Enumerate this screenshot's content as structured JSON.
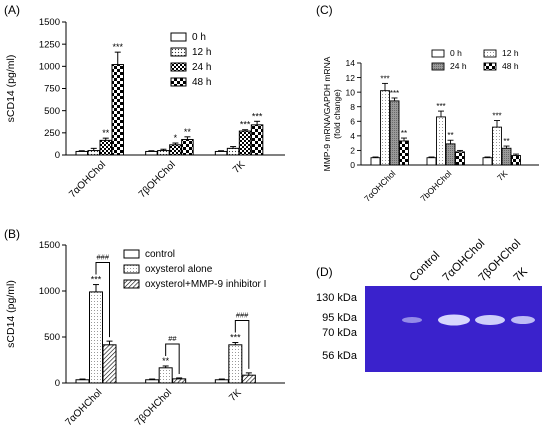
{
  "chart_data": [
    {
      "panel_label": "(A)",
      "type": "bar",
      "ylabel": "sCD14 (pg/ml)",
      "ylim": [
        0,
        1500
      ],
      "yticks": [
        0,
        250,
        500,
        750,
        1000,
        1250,
        1500
      ],
      "categories": [
        "7αOHChol",
        "7βOHChol",
        "7K"
      ],
      "series": [
        {
          "name": "0 h",
          "values": [
            40,
            40,
            40
          ],
          "errors": [
            8,
            8,
            8
          ]
        },
        {
          "name": "12 h",
          "values": [
            50,
            50,
            75
          ],
          "errors": [
            25,
            15,
            20
          ]
        },
        {
          "name": "24 h",
          "values": [
            165,
            115,
            270
          ],
          "errors": [
            25,
            20,
            15
          ]
        },
        {
          "name": "48 h",
          "values": [
            1020,
            175,
            340
          ],
          "errors": [
            140,
            30,
            40
          ]
        }
      ],
      "annotations": [
        {
          "category": 0,
          "series": 2,
          "text": "**"
        },
        {
          "category": 0,
          "series": 3,
          "text": "***"
        },
        {
          "category": 1,
          "series": 2,
          "text": "*"
        },
        {
          "category": 1,
          "series": 3,
          "text": "**"
        },
        {
          "category": 2,
          "series": 2,
          "text": "***"
        },
        {
          "category": 2,
          "series": 3,
          "text": "***"
        }
      ],
      "legend_position": "top-right"
    },
    {
      "panel_label": "(B)",
      "type": "bar",
      "ylabel": "sCD14 (pg/ml)",
      "ylim": [
        0,
        1500
      ],
      "yticks": [
        0,
        500,
        1000,
        1500
      ],
      "categories": [
        "7αOHChol",
        "7βOHChol",
        "7K"
      ],
      "series": [
        {
          "name": "control",
          "values": [
            35,
            35,
            35
          ],
          "errors": [
            8,
            8,
            8
          ]
        },
        {
          "name": "oxysterol alone",
          "values": [
            990,
            165,
            415
          ],
          "errors": [
            80,
            20,
            25
          ]
        },
        {
          "name": "oxysterol+MMP-9 inhibitor I",
          "values": [
            415,
            45,
            85
          ],
          "errors": [
            40,
            10,
            25
          ]
        }
      ],
      "annotations": [
        {
          "category": 0,
          "series": 1,
          "text": "***"
        },
        {
          "category": 1,
          "series": 1,
          "text": "**"
        },
        {
          "category": 2,
          "series": 1,
          "text": "***"
        }
      ],
      "brackets": [
        {
          "category": 0,
          "text": "###"
        },
        {
          "category": 1,
          "text": "##"
        },
        {
          "category": 2,
          "text": "###"
        }
      ],
      "legend_position": "top-right"
    },
    {
      "panel_label": "(C)",
      "type": "bar",
      "ylabel_lines": [
        "MMP-9 mRNA/GAPDH mRNA",
        "(fold change)"
      ],
      "ylim": [
        0,
        14
      ],
      "yticks": [
        0,
        2,
        4,
        6,
        8,
        10,
        12,
        14
      ],
      "categories": [
        "7αOHChol",
        "7bOHChol",
        "7K"
      ],
      "series": [
        {
          "name": "0 h",
          "values": [
            1.0,
            1.0,
            1.0
          ],
          "errors": [
            0.1,
            0.1,
            0.1
          ]
        },
        {
          "name": "12 h",
          "values": [
            10.2,
            6.6,
            5.2
          ],
          "errors": [
            1.0,
            0.8,
            0.9
          ]
        },
        {
          "name": "24 h",
          "values": [
            8.8,
            2.9,
            2.3
          ],
          "errors": [
            0.4,
            0.5,
            0.3
          ]
        },
        {
          "name": "48 h",
          "values": [
            3.3,
            1.8,
            1.3
          ],
          "errors": [
            0.4,
            0.2,
            0.2
          ]
        }
      ],
      "annotations": [
        {
          "category": 0,
          "series": 1,
          "text": "***"
        },
        {
          "category": 0,
          "series": 2,
          "text": "***"
        },
        {
          "category": 0,
          "series": 3,
          "text": "**"
        },
        {
          "category": 1,
          "series": 1,
          "text": "***"
        },
        {
          "category": 1,
          "series": 2,
          "text": "**"
        },
        {
          "category": 2,
          "series": 1,
          "text": "***"
        },
        {
          "category": 2,
          "series": 2,
          "text": "**"
        }
      ],
      "legend_position": "top-right"
    }
  ],
  "gel": {
    "panel_label": "(D)",
    "lanes": [
      "Control",
      "7αOHChol",
      "7βOHChol",
      "7K"
    ],
    "markers": [
      "130 kDa",
      "95 kDa",
      "70 kDa",
      "56 kDa"
    ],
    "background_color": "#3a22cc",
    "band_color": "#dfe2ff"
  }
}
